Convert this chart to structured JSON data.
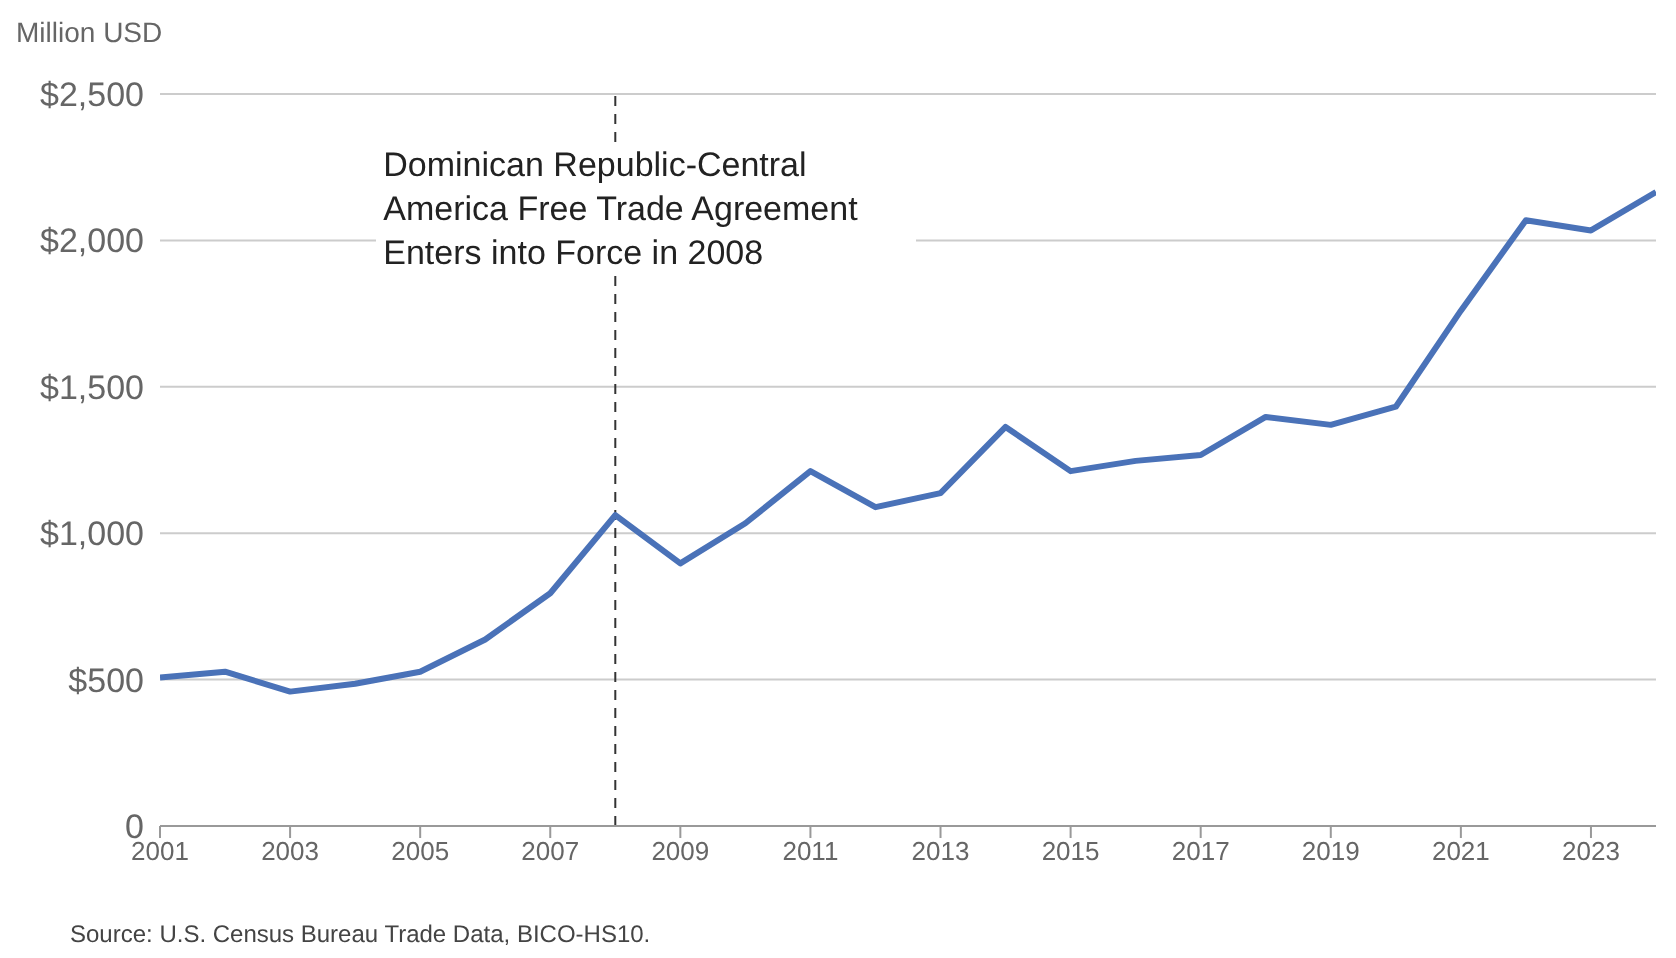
{
  "chart_data": {
    "type": "line",
    "ylabel": "Million USD",
    "x": [
      2001,
      2002,
      2003,
      2004,
      2005,
      2006,
      2007,
      2008,
      2009,
      2010,
      2011,
      2012,
      2013,
      2014,
      2015,
      2016,
      2017,
      2018,
      2019,
      2020,
      2021,
      2022,
      2023,
      2024
    ],
    "series": [
      {
        "color": "#4a72b8",
        "values": [
          507,
          527,
          459,
          486,
          527,
          637,
          795,
          1062,
          897,
          1034,
          1212,
          1089,
          1137,
          1363,
          1212,
          1247,
          1267,
          1397,
          1370,
          1432,
          1760,
          2069,
          2034,
          2165
        ]
      }
    ],
    "xlim": [
      2001,
      2024
    ],
    "xticks": [
      2001,
      2003,
      2005,
      2007,
      2009,
      2011,
      2013,
      2015,
      2017,
      2019,
      2021,
      2023
    ],
    "ylim": [
      0,
      2500
    ],
    "yticks": [
      0,
      {
        "value": 500,
        "label": "$500"
      },
      {
        "value": 1000,
        "label": "$1,000"
      },
      {
        "value": 1500,
        "label": "$1,500"
      },
      {
        "value": 2000,
        "label": "$2,000"
      },
      {
        "value": 2500,
        "label": "$2,500"
      }
    ],
    "ref_lines": [
      {
        "axis": "x",
        "value": 2008,
        "label": "Dominican Republic-Central America Free Trade Agreement Enters into Force in 2008",
        "color": "#333333",
        "line_style": "dashed"
      }
    ],
    "annotations": [
      "Source: U.S. Census Bureau Trade Data, BICO-HS10."
    ],
    "grid": "y",
    "legend": false,
    "marker": "none",
    "line_style": "solid"
  }
}
